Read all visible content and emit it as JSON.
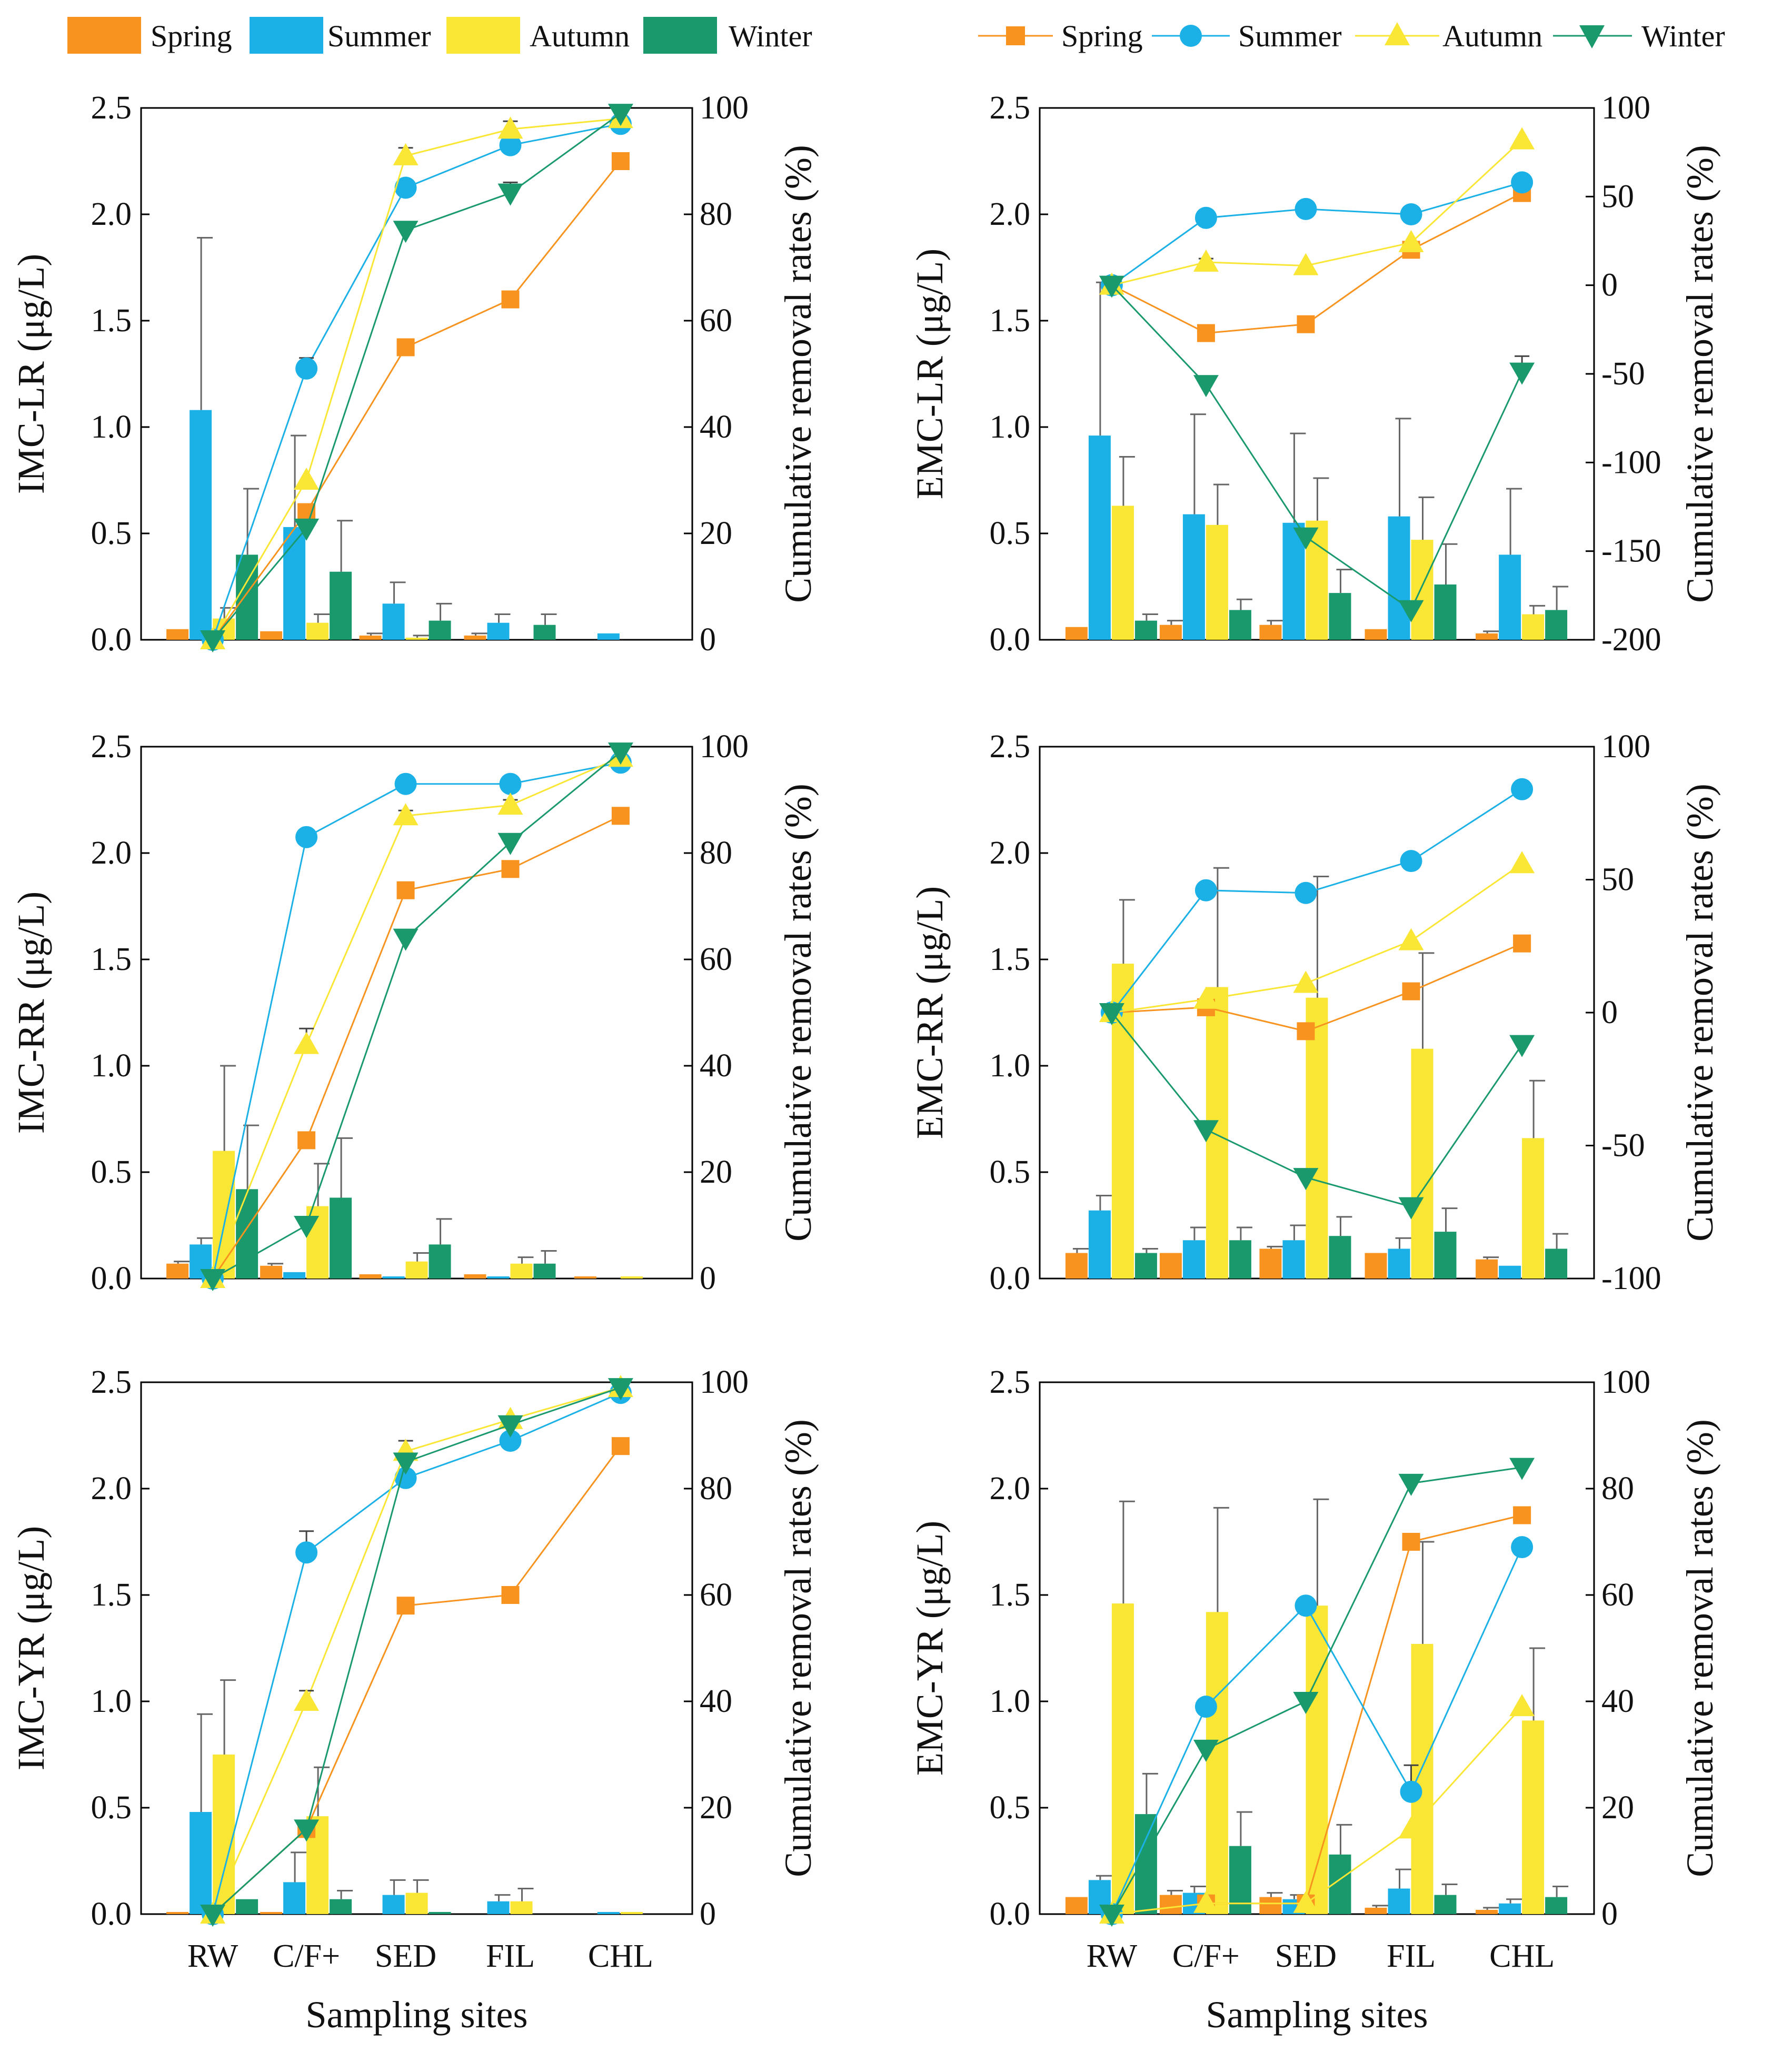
{
  "legend_bars": {
    "entries": [
      "Spring",
      "Summer",
      "Autumn",
      "Winter"
    ]
  },
  "legend_lines": {
    "entries": [
      "Spring",
      "Summer",
      "Autumn",
      "Winter"
    ]
  },
  "season_colors": {
    "Spring": "#F7931E",
    "Summer": "#1BB1E7",
    "Autumn": "#F9E635",
    "Winter": "#1A9A6C"
  },
  "marker_shapes": {
    "Spring": "square",
    "Summer": "circle",
    "Autumn": "triangle-up",
    "Winter": "triangle-down"
  },
  "chart_data": [
    {
      "id": "imc-lr",
      "type": "bar+line",
      "left_ylabel": "IMC-LR (μg/L)",
      "right_ylabel": "Cumulative removal rates (%)",
      "xlabel": "",
      "categories": [
        "RW",
        "C/F+",
        "SED",
        "FIL",
        "CHL"
      ],
      "left_ylim": [
        0,
        2.5
      ],
      "left_ticks": [
        "0.0",
        "0.5",
        "1.0",
        "1.5",
        "2.0",
        "2.5"
      ],
      "right_ylim": [
        0,
        100
      ],
      "right_ticks": [
        "0",
        "20",
        "40",
        "60",
        "80",
        "100"
      ],
      "bars": [
        {
          "name": "Spring",
          "values": [
            0.05,
            0.04,
            0.02,
            0.02,
            0.0
          ],
          "errors": [
            0.0,
            0.0,
            0.01,
            0.01,
            0.0
          ]
        },
        {
          "name": "Summer",
          "values": [
            1.08,
            0.53,
            0.17,
            0.08,
            0.03
          ],
          "errors": [
            0.81,
            0.43,
            0.1,
            0.04,
            0.0
          ]
        },
        {
          "name": "Autumn",
          "values": [
            0.1,
            0.08,
            0.01,
            0.0,
            0.0
          ],
          "errors": [
            0.05,
            0.04,
            0.01,
            0.0,
            0.0
          ]
        },
        {
          "name": "Winter",
          "values": [
            0.4,
            0.32,
            0.09,
            0.07,
            0.0
          ],
          "errors": [
            0.31,
            0.24,
            0.08,
            0.05,
            0.0
          ]
        }
      ],
      "lines": [
        {
          "name": "Spring",
          "values": [
            0,
            24,
            55,
            64,
            90
          ],
          "errors": [
            0,
            0,
            0,
            0,
            0
          ]
        },
        {
          "name": "Summer",
          "values": [
            0,
            51,
            85,
            93,
            97
          ],
          "errors": [
            0,
            2,
            0,
            0,
            0
          ]
        },
        {
          "name": "Autumn",
          "values": [
            0,
            30,
            91,
            96,
            98
          ],
          "errors": [
            0,
            0,
            1.5,
            1.5,
            0
          ]
        },
        {
          "name": "Winter",
          "values": [
            0,
            21,
            77,
            84,
            99
          ],
          "errors": [
            0,
            0,
            0,
            2,
            0
          ]
        }
      ]
    },
    {
      "id": "emc-lr",
      "type": "bar+line",
      "left_ylabel": "EMC-LR (μg/L)",
      "right_ylabel": "Cumulative removal rates (%)",
      "xlabel": "",
      "categories": [
        "RW",
        "C/F+",
        "SED",
        "FIL",
        "CHL"
      ],
      "left_ylim": [
        0,
        2.5
      ],
      "left_ticks": [
        "0.0",
        "0.5",
        "1.0",
        "1.5",
        "2.0",
        "2.5"
      ],
      "right_ylim": [
        -200,
        100
      ],
      "right_ticks": [
        "-200",
        "-150",
        "-100",
        "-50",
        "0",
        "50",
        "100"
      ],
      "bars": [
        {
          "name": "Spring",
          "values": [
            0.06,
            0.07,
            0.07,
            0.05,
            0.03
          ],
          "errors": [
            0.0,
            0.02,
            0.02,
            0.0,
            0.01
          ]
        },
        {
          "name": "Summer",
          "values": [
            0.96,
            0.59,
            0.55,
            0.58,
            0.4
          ],
          "errors": [
            0.72,
            0.47,
            0.42,
            0.46,
            0.31
          ]
        },
        {
          "name": "Autumn",
          "values": [
            0.63,
            0.54,
            0.56,
            0.47,
            0.12
          ],
          "errors": [
            0.23,
            0.19,
            0.2,
            0.2,
            0.04
          ]
        },
        {
          "name": "Winter",
          "values": [
            0.09,
            0.14,
            0.22,
            0.26,
            0.14
          ],
          "errors": [
            0.03,
            0.05,
            0.11,
            0.19,
            0.11
          ]
        }
      ],
      "lines": [
        {
          "name": "Spring",
          "values": [
            0,
            -27,
            -22,
            20,
            52
          ],
          "errors": [
            0,
            0,
            0,
            0,
            0
          ]
        },
        {
          "name": "Summer",
          "values": [
            0,
            38,
            43,
            40,
            58
          ],
          "errors": [
            0,
            3,
            0,
            0,
            0
          ]
        },
        {
          "name": "Autumn",
          "values": [
            0,
            13,
            11,
            24,
            82
          ],
          "errors": [
            0,
            2,
            0,
            0,
            0
          ]
        },
        {
          "name": "Winter",
          "values": [
            0,
            -56,
            -142,
            -183,
            -49
          ],
          "errors": [
            0,
            0,
            0,
            0,
            9
          ]
        }
      ]
    },
    {
      "id": "imc-rr",
      "type": "bar+line",
      "left_ylabel": "IMC-RR (μg/L)",
      "right_ylabel": "Cumulative removal rates (%)",
      "xlabel": "",
      "categories": [
        "RW",
        "C/F+",
        "SED",
        "FIL",
        "CHL"
      ],
      "left_ylim": [
        0,
        2.5
      ],
      "left_ticks": [
        "0.0",
        "0.5",
        "1.0",
        "1.5",
        "2.0",
        "2.5"
      ],
      "right_ylim": [
        0,
        100
      ],
      "right_ticks": [
        "0",
        "20",
        "40",
        "60",
        "80",
        "100"
      ],
      "bars": [
        {
          "name": "Spring",
          "values": [
            0.07,
            0.06,
            0.02,
            0.02,
            0.01
          ],
          "errors": [
            0.01,
            0.01,
            0.0,
            0.0,
            0.0
          ]
        },
        {
          "name": "Summer",
          "values": [
            0.16,
            0.03,
            0.01,
            0.01,
            0.0
          ],
          "errors": [
            0.03,
            0.0,
            0.0,
            0.0,
            0.0
          ]
        },
        {
          "name": "Autumn",
          "values": [
            0.6,
            0.34,
            0.08,
            0.07,
            0.01
          ],
          "errors": [
            0.4,
            0.2,
            0.04,
            0.03,
            0.0
          ]
        },
        {
          "name": "Winter",
          "values": [
            0.42,
            0.38,
            0.16,
            0.07,
            0.0
          ],
          "errors": [
            0.3,
            0.28,
            0.12,
            0.06,
            0.0
          ]
        }
      ],
      "lines": [
        {
          "name": "Spring",
          "values": [
            0,
            26,
            73,
            77,
            87
          ],
          "errors": [
            0,
            0,
            0,
            0,
            1
          ]
        },
        {
          "name": "Summer",
          "values": [
            0,
            83,
            93,
            93,
            97
          ],
          "errors": [
            0,
            0,
            0,
            0,
            0
          ]
        },
        {
          "name": "Autumn",
          "values": [
            0,
            44,
            87,
            89,
            98
          ],
          "errors": [
            0,
            3,
            1,
            1,
            0
          ]
        },
        {
          "name": "Winter",
          "values": [
            0,
            10,
            64,
            82,
            99
          ],
          "errors": [
            0,
            0,
            0,
            0,
            0
          ]
        }
      ]
    },
    {
      "id": "emc-rr",
      "type": "bar+line",
      "left_ylabel": "EMC-RR (μg/L)",
      "right_ylabel": "Cumulative removal rates (%)",
      "xlabel": "",
      "categories": [
        "RW",
        "C/F+",
        "SED",
        "FIL",
        "CHL"
      ],
      "left_ylim": [
        0,
        2.5
      ],
      "left_ticks": [
        "0.0",
        "0.5",
        "1.0",
        "1.5",
        "2.0",
        "2.5"
      ],
      "right_ylim": [
        -100,
        100
      ],
      "right_ticks": [
        "-100",
        "-50",
        "0",
        "50",
        "100"
      ],
      "bars": [
        {
          "name": "Spring",
          "values": [
            0.12,
            0.12,
            0.14,
            0.12,
            0.09
          ],
          "errors": [
            0.02,
            0.0,
            0.01,
            0.0,
            0.01
          ]
        },
        {
          "name": "Summer",
          "values": [
            0.32,
            0.18,
            0.18,
            0.14,
            0.06
          ],
          "errors": [
            0.07,
            0.06,
            0.07,
            0.05,
            0.0
          ]
        },
        {
          "name": "Autumn",
          "values": [
            1.48,
            1.37,
            1.32,
            1.08,
            0.66
          ],
          "errors": [
            0.3,
            0.56,
            0.57,
            0.45,
            0.27
          ]
        },
        {
          "name": "Winter",
          "values": [
            0.12,
            0.18,
            0.2,
            0.22,
            0.14
          ],
          "errors": [
            0.02,
            0.06,
            0.09,
            0.11,
            0.07
          ]
        }
      ],
      "lines": [
        {
          "name": "Spring",
          "values": [
            0,
            2,
            -7,
            8,
            26
          ],
          "errors": [
            0,
            0,
            0,
            0,
            0
          ]
        },
        {
          "name": "Summer",
          "values": [
            0,
            46,
            45,
            57,
            84
          ],
          "errors": [
            0,
            0,
            0,
            0,
            0
          ]
        },
        {
          "name": "Autumn",
          "values": [
            0,
            5,
            11,
            27,
            56
          ],
          "errors": [
            0,
            0,
            0,
            0,
            0
          ]
        },
        {
          "name": "Winter",
          "values": [
            0,
            -44,
            -62,
            -73,
            -12
          ],
          "errors": [
            0,
            0,
            0,
            0,
            2
          ]
        }
      ]
    },
    {
      "id": "imc-yr",
      "type": "bar+line",
      "left_ylabel": "IMC-YR (μg/L)",
      "right_ylabel": "Cumulative removal rates (%)",
      "xlabel": "Sampling sites",
      "categories": [
        "RW",
        "C/F+",
        "SED",
        "FIL",
        "CHL"
      ],
      "left_ylim": [
        0,
        2.5
      ],
      "left_ticks": [
        "0.0",
        "0.5",
        "1.0",
        "1.5",
        "2.0",
        "2.5"
      ],
      "right_ylim": [
        0,
        100
      ],
      "right_ticks": [
        "0",
        "20",
        "40",
        "60",
        "80",
        "100"
      ],
      "bars": [
        {
          "name": "Spring",
          "values": [
            0.01,
            0.01,
            0.0,
            0.0,
            0.0
          ],
          "errors": [
            0.0,
            0.0,
            0.0,
            0.0,
            0.0
          ]
        },
        {
          "name": "Summer",
          "values": [
            0.48,
            0.15,
            0.09,
            0.06,
            0.01
          ],
          "errors": [
            0.46,
            0.14,
            0.07,
            0.03,
            0.0
          ]
        },
        {
          "name": "Autumn",
          "values": [
            0.75,
            0.46,
            0.1,
            0.06,
            0.01
          ],
          "errors": [
            0.35,
            0.23,
            0.06,
            0.06,
            0.0
          ]
        },
        {
          "name": "Winter",
          "values": [
            0.07,
            0.07,
            0.01,
            0.0,
            0.0
          ],
          "errors": [
            0.0,
            0.04,
            0.0,
            0.0,
            0.0
          ]
        }
      ],
      "lines": [
        {
          "name": "Spring",
          "values": [
            0,
            16,
            58,
            60,
            88
          ],
          "errors": [
            0,
            0,
            0,
            0,
            0
          ]
        },
        {
          "name": "Summer",
          "values": [
            0,
            68,
            82,
            89,
            98
          ],
          "errors": [
            0,
            4,
            0,
            0,
            0
          ]
        },
        {
          "name": "Autumn",
          "values": [
            0,
            40,
            87,
            93,
            99
          ],
          "errors": [
            0,
            2,
            2,
            0,
            0
          ]
        },
        {
          "name": "Winter",
          "values": [
            0,
            16,
            85,
            92,
            99
          ],
          "errors": [
            0,
            0,
            0,
            0,
            0
          ]
        }
      ]
    },
    {
      "id": "emc-yr",
      "type": "bar+line",
      "left_ylabel": "EMC-YR (μg/L)",
      "right_ylabel": "Cumulative removal rates (%)",
      "xlabel": "Sampling sites",
      "categories": [
        "RW",
        "C/F+",
        "SED",
        "FIL",
        "CHL"
      ],
      "left_ylim": [
        0,
        2.5
      ],
      "left_ticks": [
        "0.0",
        "0.5",
        "1.0",
        "1.5",
        "2.0",
        "2.5"
      ],
      "right_ylim": [
        0,
        100
      ],
      "right_ticks": [
        "0",
        "20",
        "40",
        "60",
        "80",
        "100"
      ],
      "bars": [
        {
          "name": "Spring",
          "values": [
            0.08,
            0.09,
            0.08,
            0.03,
            0.02
          ],
          "errors": [
            0.0,
            0.02,
            0.02,
            0.01,
            0.01
          ]
        },
        {
          "name": "Summer",
          "values": [
            0.16,
            0.1,
            0.07,
            0.12,
            0.05
          ],
          "errors": [
            0.02,
            0.03,
            0.02,
            0.09,
            0.02
          ]
        },
        {
          "name": "Autumn",
          "values": [
            1.46,
            1.42,
            1.45,
            1.27,
            0.91
          ],
          "errors": [
            0.48,
            0.49,
            0.5,
            0.48,
            0.34
          ]
        },
        {
          "name": "Winter",
          "values": [
            0.47,
            0.32,
            0.28,
            0.09,
            0.08
          ],
          "errors": [
            0.19,
            0.16,
            0.14,
            0.05,
            0.05
          ]
        }
      ],
      "lines": [
        {
          "name": "Spring",
          "values": [
            0,
            2,
            2,
            70,
            75
          ],
          "errors": [
            0,
            0,
            0,
            0,
            0
          ]
        },
        {
          "name": "Summer",
          "values": [
            0,
            39,
            58,
            23,
            69
          ],
          "errors": [
            0,
            0,
            0,
            5,
            0
          ]
        },
        {
          "name": "Autumn",
          "values": [
            0,
            2,
            2,
            16,
            39
          ],
          "errors": [
            0,
            0,
            0,
            0,
            0
          ]
        },
        {
          "name": "Winter",
          "values": [
            0,
            31,
            40,
            81,
            84
          ],
          "errors": [
            0,
            0,
            0,
            0,
            0
          ]
        }
      ]
    }
  ]
}
